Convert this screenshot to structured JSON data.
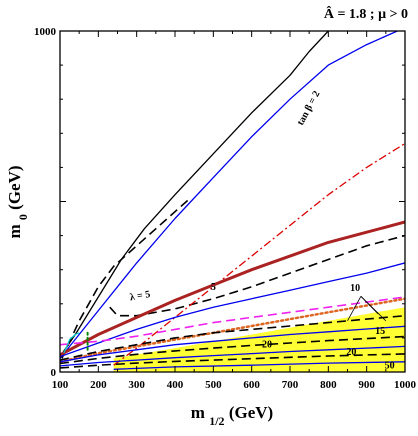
{
  "chart_data": {
    "type": "line",
    "title": "Â = 1.8 ; μ > 0",
    "xlabel": "m1/2 (GeV)",
    "ylabel": "m0 (GeV)",
    "xlim": [
      100,
      1000
    ],
    "ylim": [
      0,
      1000
    ],
    "xticks": [
      "100",
      "200",
      "300",
      "400",
      "500",
      "600",
      "700",
      "800",
      "900",
      "1000"
    ],
    "yticks": [
      "0",
      "1000"
    ],
    "grid": false,
    "regions": [
      {
        "name": "yellow-band",
        "color": "#ffff33",
        "upper": [
          [
            240,
            40
          ],
          [
            400,
            70
          ],
          [
            600,
            110
          ],
          [
            800,
            150
          ],
          [
            1000,
            190
          ]
        ],
        "lower": [
          [
            240,
            0
          ],
          [
            1000,
            0
          ]
        ]
      }
    ],
    "series": [
      {
        "color": "#000000",
        "style": "solid",
        "width": 1.3,
        "points": [
          [
            100,
            45
          ],
          [
            140,
            110
          ],
          [
            200,
            220
          ],
          [
            260,
            330
          ],
          [
            320,
            420
          ],
          [
            400,
            520
          ],
          [
            500,
            640
          ],
          [
            600,
            760
          ],
          [
            700,
            870
          ],
          [
            750,
            940
          ],
          [
            800,
            1000
          ]
        ]
      },
      {
        "color": "#0000ee",
        "style": "solid",
        "width": 1.3,
        "points": [
          [
            100,
            40
          ],
          [
            200,
            180
          ],
          [
            300,
            320
          ],
          [
            400,
            450
          ],
          [
            500,
            570
          ],
          [
            600,
            690
          ],
          [
            700,
            800
          ],
          [
            800,
            900
          ],
          [
            900,
            960
          ],
          [
            980,
            1000
          ]
        ]
      },
      {
        "color": "#000000",
        "style": "dashed",
        "width": 1.6,
        "points": [
          [
            105,
            40
          ],
          [
            150,
            150
          ],
          [
            200,
            250
          ],
          [
            240,
            310
          ],
          [
            300,
            370
          ],
          [
            350,
            420
          ],
          [
            400,
            470
          ],
          [
            440,
            510
          ]
        ]
      },
      {
        "color": "#000000",
        "style": "dashed",
        "width": 1.6,
        "points": [
          [
            230,
            190
          ],
          [
            250,
            165
          ],
          [
            300,
            165
          ],
          [
            400,
            185
          ],
          [
            500,
            215
          ],
          [
            600,
            250
          ],
          [
            700,
            290
          ],
          [
            800,
            330
          ],
          [
            900,
            370
          ],
          [
            1000,
            400
          ]
        ]
      },
      {
        "color": "#dd0000",
        "style": "dashdot",
        "width": 1.3,
        "points": [
          [
            240,
            20
          ],
          [
            300,
            70
          ],
          [
            400,
            160
          ],
          [
            500,
            250
          ],
          [
            600,
            340
          ],
          [
            700,
            430
          ],
          [
            800,
            520
          ],
          [
            900,
            600
          ],
          [
            1000,
            670
          ]
        ]
      },
      {
        "color": "#aa2222",
        "style": "solid",
        "width": 3,
        "points": [
          [
            100,
            50
          ],
          [
            200,
            110
          ],
          [
            300,
            160
          ],
          [
            400,
            210
          ],
          [
            500,
            255
          ],
          [
            600,
            300
          ],
          [
            700,
            340
          ],
          [
            800,
            380
          ],
          [
            900,
            410
          ],
          [
            1000,
            440
          ]
        ]
      },
      {
        "color": "#0000ee",
        "style": "solid",
        "width": 1.3,
        "points": [
          [
            100,
            45
          ],
          [
            200,
            85
          ],
          [
            300,
            125
          ],
          [
            400,
            160
          ],
          [
            500,
            190
          ],
          [
            600,
            215
          ],
          [
            700,
            240
          ],
          [
            800,
            265
          ],
          [
            900,
            290
          ],
          [
            1000,
            320
          ]
        ]
      },
      {
        "color": "#ee22ee",
        "style": "dashed",
        "width": 1.6,
        "points": [
          [
            100,
            80
          ],
          [
            200,
            90
          ],
          [
            300,
            105
          ],
          [
            400,
            125
          ],
          [
            500,
            145
          ],
          [
            600,
            160
          ],
          [
            700,
            175
          ],
          [
            800,
            190
          ],
          [
            900,
            205
          ],
          [
            1000,
            220
          ]
        ]
      },
      {
        "color": "#dd6622",
        "style": "dotted",
        "width": 2.5,
        "points": [
          [
            100,
            30
          ],
          [
            200,
            55
          ],
          [
            300,
            75
          ],
          [
            400,
            95
          ],
          [
            500,
            115
          ],
          [
            600,
            135
          ],
          [
            700,
            155
          ],
          [
            800,
            175
          ],
          [
            900,
            195
          ],
          [
            1000,
            215
          ]
        ]
      },
      {
        "color": "#000000",
        "style": "dashed",
        "width": 1.6,
        "points": [
          [
            100,
            35
          ],
          [
            200,
            60
          ],
          [
            300,
            80
          ],
          [
            400,
            100
          ],
          [
            500,
            115
          ],
          [
            600,
            125
          ],
          [
            700,
            135
          ],
          [
            800,
            145
          ],
          [
            900,
            155
          ],
          [
            1000,
            165
          ]
        ]
      },
      {
        "color": "#0000ee",
        "style": "solid",
        "width": 1.3,
        "points": [
          [
            100,
            30
          ],
          [
            200,
            50
          ],
          [
            300,
            65
          ],
          [
            400,
            80
          ],
          [
            500,
            90
          ],
          [
            600,
            100
          ],
          [
            700,
            110
          ],
          [
            800,
            118
          ],
          [
            900,
            126
          ],
          [
            1000,
            134
          ]
        ]
      },
      {
        "color": "#000000",
        "style": "dashed",
        "width": 1.6,
        "points": [
          [
            100,
            25
          ],
          [
            200,
            40
          ],
          [
            300,
            52
          ],
          [
            400,
            62
          ],
          [
            500,
            70
          ],
          [
            600,
            78
          ],
          [
            700,
            85
          ],
          [
            800,
            92
          ],
          [
            900,
            98
          ],
          [
            1000,
            104
          ]
        ]
      },
      {
        "color": "#0000ee",
        "style": "solid",
        "width": 1.3,
        "points": [
          [
            100,
            18
          ],
          [
            200,
            28
          ],
          [
            300,
            35
          ],
          [
            400,
            42
          ],
          [
            500,
            48
          ],
          [
            600,
            54
          ],
          [
            700,
            60
          ],
          [
            800,
            65
          ],
          [
            900,
            70
          ],
          [
            1000,
            75
          ]
        ]
      },
      {
        "color": "#000000",
        "style": "dashed",
        "width": 1.6,
        "points": [
          [
            100,
            12
          ],
          [
            200,
            20
          ],
          [
            300,
            26
          ],
          [
            400,
            31
          ],
          [
            500,
            35
          ],
          [
            600,
            39
          ],
          [
            700,
            43
          ],
          [
            800,
            47
          ],
          [
            900,
            50
          ],
          [
            1000,
            53
          ]
        ]
      },
      {
        "color": "#0000ee",
        "style": "solid",
        "width": 1.3,
        "points": [
          [
            240,
            8
          ],
          [
            400,
            15
          ],
          [
            600,
            20
          ],
          [
            800,
            26
          ],
          [
            1000,
            30
          ]
        ]
      },
      {
        "color": "#00cccc",
        "style": "solid",
        "width": 1.2,
        "points": [
          [
            110,
            55
          ],
          [
            125,
            95
          ],
          [
            140,
            110
          ],
          [
            150,
            115
          ]
        ]
      },
      {
        "color": "#008800",
        "style": "dotted",
        "width": 2,
        "points": [
          [
            172,
            65
          ],
          [
            172,
            120
          ]
        ]
      }
    ],
    "annotations": [
      {
        "text": "tan β = 2",
        "x": 755,
        "y": 770,
        "rotate": -62,
        "size": "sm"
      },
      {
        "text": "λ = 5",
        "x": 310,
        "y": 215,
        "rotate": -10,
        "size": "sm"
      },
      {
        "text": "5",
        "x": 500,
        "y": 240,
        "rotate": 0,
        "size": "sm"
      },
      {
        "text": "10",
        "x": 870,
        "y": 238,
        "rotate": 0,
        "size": "sm"
      },
      {
        "text": "15",
        "x": 935,
        "y": 112,
        "rotate": 0,
        "size": "sm"
      },
      {
        "text": "20",
        "x": 640,
        "y": 72,
        "rotate": 0,
        "size": "sm"
      },
      {
        "text": "20",
        "x": 860,
        "y": 50,
        "rotate": 0,
        "size": "sm"
      },
      {
        "text": "50",
        "x": 960,
        "y": 10,
        "rotate": 0,
        "size": "sm"
      }
    ]
  }
}
